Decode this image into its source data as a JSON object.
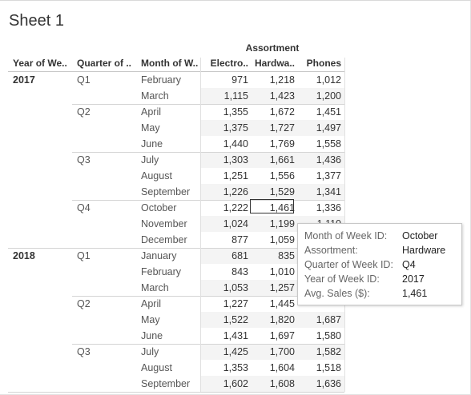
{
  "sheet": {
    "title": "Sheet 1"
  },
  "headers": {
    "group": "Assortment",
    "year": "Year of We..",
    "quarter": "Quarter of ..",
    "month": "Month of W..",
    "columns": [
      "Electro..",
      "Hardwa..",
      "Phones"
    ]
  },
  "rows": [
    {
      "year": "2017",
      "quarter": "Q1",
      "month": "February",
      "values": [
        "971",
        "1,218",
        "1,012"
      ]
    },
    {
      "year": "",
      "quarter": "",
      "month": "March",
      "values": [
        "1,115",
        "1,423",
        "1,200"
      ]
    },
    {
      "year": "",
      "quarter": "Q2",
      "month": "April",
      "values": [
        "1,355",
        "1,672",
        "1,451"
      ]
    },
    {
      "year": "",
      "quarter": "",
      "month": "May",
      "values": [
        "1,375",
        "1,727",
        "1,497"
      ]
    },
    {
      "year": "",
      "quarter": "",
      "month": "June",
      "values": [
        "1,440",
        "1,769",
        "1,558"
      ]
    },
    {
      "year": "",
      "quarter": "Q3",
      "month": "July",
      "values": [
        "1,303",
        "1,661",
        "1,436"
      ]
    },
    {
      "year": "",
      "quarter": "",
      "month": "August",
      "values": [
        "1,251",
        "1,556",
        "1,377"
      ]
    },
    {
      "year": "",
      "quarter": "",
      "month": "September",
      "values": [
        "1,226",
        "1,529",
        "1,341"
      ]
    },
    {
      "year": "",
      "quarter": "Q4",
      "month": "October",
      "values": [
        "1,222",
        "1,461",
        "1,336"
      ]
    },
    {
      "year": "",
      "quarter": "",
      "month": "November",
      "values": [
        "1,024",
        "1,199",
        "1,110"
      ]
    },
    {
      "year": "",
      "quarter": "",
      "month": "December",
      "values": [
        "877",
        "1,059",
        ""
      ]
    },
    {
      "year": "2018",
      "quarter": "Q1",
      "month": "January",
      "values": [
        "681",
        "835",
        ""
      ]
    },
    {
      "year": "",
      "quarter": "",
      "month": "February",
      "values": [
        "843",
        "1,010",
        ""
      ]
    },
    {
      "year": "",
      "quarter": "",
      "month": "March",
      "values": [
        "1,053",
        "1,257",
        ""
      ]
    },
    {
      "year": "",
      "quarter": "Q2",
      "month": "April",
      "values": [
        "1,227",
        "1,445",
        ""
      ]
    },
    {
      "year": "",
      "quarter": "",
      "month": "May",
      "values": [
        "1,522",
        "1,820",
        "1,687"
      ]
    },
    {
      "year": "",
      "quarter": "",
      "month": "June",
      "values": [
        "1,431",
        "1,697",
        "1,580"
      ]
    },
    {
      "year": "",
      "quarter": "Q3",
      "month": "July",
      "values": [
        "1,425",
        "1,700",
        "1,582"
      ]
    },
    {
      "year": "",
      "quarter": "",
      "month": "August",
      "values": [
        "1,353",
        "1,604",
        "1,518"
      ]
    },
    {
      "year": "",
      "quarter": "",
      "month": "September",
      "values": [
        "1,602",
        "1,608",
        "1,636"
      ]
    }
  ],
  "tooltip": {
    "items": [
      {
        "label": "Month of Week ID:",
        "value": "October"
      },
      {
        "label": "Assortment:",
        "value": "Hardware"
      },
      {
        "label": "Quarter of Week ID:",
        "value": "Q4"
      },
      {
        "label": "Year of Week ID:",
        "value": "2017"
      },
      {
        "label": "Avg. Sales ($):",
        "value": "1,461"
      }
    ]
  }
}
